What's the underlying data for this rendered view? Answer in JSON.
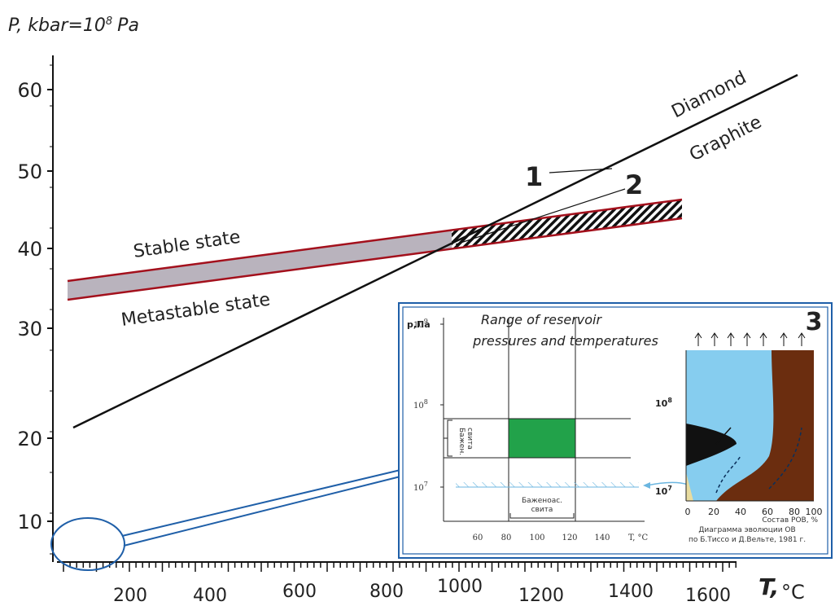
{
  "y_axis": {
    "title": "P, kbar=10",
    "title_exponent": "8",
    "title_unit": "Pa",
    "ticks": [
      60,
      50,
      40,
      30,
      20,
      10
    ]
  },
  "x_axis": {
    "title": "T,",
    "title_unit": "°C",
    "ticks": [
      200,
      400,
      600,
      800,
      1000,
      1200,
      1400,
      1600
    ]
  },
  "labels": {
    "diamond": "Diamond",
    "graphite": "Graphite",
    "stable": "Stable state",
    "metastable": "Metastable state",
    "marker_1": "1",
    "marker_2": "2",
    "marker_3": "3"
  },
  "inset": {
    "title_line1": "Range of reservoir",
    "title_line2": "pressures and temperatures",
    "y_title": "p,Па",
    "y_base": "10",
    "y_exponents": [
      "9",
      "8",
      "7"
    ],
    "bracket_label_1": "Бажен.",
    "bracket_label_2": "свита",
    "bottom_label_1": "Баженоас.",
    "bottom_label_2": "свита",
    "x_ticks": [
      60,
      80,
      100,
      120,
      140
    ],
    "x_title": "T, °C",
    "right_y_exponents": [
      "8",
      "7"
    ],
    "right_x_ticks": [
      0,
      20,
      40,
      60,
      80,
      100
    ],
    "right_x_title": "Состав РОВ, %",
    "caption_1": "Диаграмма  эволюции ОВ",
    "caption_2": "по Б.Тиссо и Д.Вельте, 1981 г."
  }
}
